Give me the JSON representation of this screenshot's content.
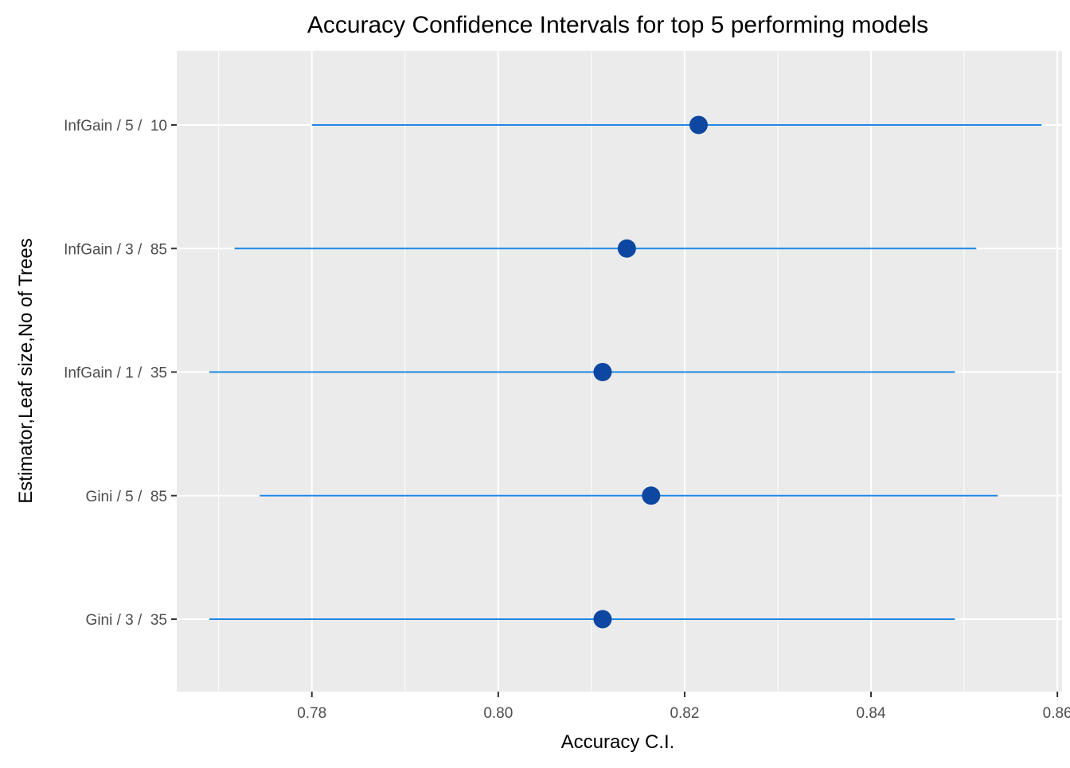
{
  "chart_data": {
    "type": "scatter",
    "subtype": "point-range (confidence intervals)",
    "title": "Accuracy Confidence Intervals for top 5 performing models",
    "xlabel": "Accuracy C.I.",
    "ylabel": "Estimator,Leaf size,No of Trees",
    "xlim": [
      0.7655,
      0.8605
    ],
    "x_ticks": [
      0.78,
      0.8,
      0.82,
      0.84,
      0.86
    ],
    "x_tick_labels": [
      "0.78",
      "0.80",
      "0.82",
      "0.84",
      "0.86"
    ],
    "grid": true,
    "orientation": "horizontal",
    "categories": [
      "InfGain / 5 /  10",
      "InfGain / 3 /  85",
      "InfGain / 1 /  35",
      "Gini / 5 /  85",
      "Gini / 3 /  35"
    ],
    "series": [
      {
        "values": [
          0.8215,
          0.8138,
          0.8112,
          0.8164,
          0.8112
        ],
        "lower": [
          0.78,
          0.7717,
          0.769,
          0.7744,
          0.769
        ],
        "upper": [
          0.8583,
          0.8513,
          0.849,
          0.8536,
          0.849
        ]
      }
    ],
    "colors": {
      "panel_background": "#EBEBEB",
      "grid_line": "#FFFFFF",
      "interval_line": "#1E88E5",
      "point": "#0D47A1",
      "text_dark": "#000000",
      "tick_label": "#4D4D4D",
      "tick_mark": "#333333"
    }
  }
}
